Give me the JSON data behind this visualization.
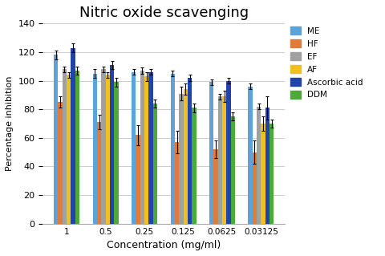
{
  "title": "Nitric oxide scavenging",
  "xlabel": "Concentration (mg/ml)",
  "ylabel": "Percentage inhibition",
  "categories": [
    "1",
    "0.5",
    "0.25",
    "0.125",
    "0.0625",
    "0.03125"
  ],
  "series": {
    "ME": [
      118,
      105,
      106,
      105,
      99,
      96
    ],
    "HF": [
      85,
      71,
      62,
      57,
      52,
      50
    ],
    "EF": [
      108,
      108,
      107,
      91,
      89,
      82
    ],
    "AF": [
      104,
      104,
      103,
      94,
      89,
      70
    ],
    "Ascorbic acid": [
      123,
      111,
      106,
      102,
      100,
      81
    ],
    "DDM": [
      107,
      99,
      84,
      81,
      75,
      70
    ]
  },
  "errors": {
    "ME": [
      3,
      3,
      2,
      2,
      2,
      2
    ],
    "HF": [
      4,
      5,
      7,
      8,
      6,
      8
    ],
    "EF": [
      2,
      2,
      2,
      5,
      2,
      2
    ],
    "AF": [
      2,
      2,
      3,
      4,
      4,
      5
    ],
    "Ascorbic acid": [
      3,
      3,
      2,
      2,
      2,
      8
    ],
    "DDM": [
      3,
      3,
      3,
      3,
      3,
      3
    ]
  },
  "colors": {
    "ME": "#5ba3d9",
    "HF": "#e07b39",
    "EF": "#a0a0a0",
    "AF": "#f0c020",
    "Ascorbic acid": "#2244aa",
    "DDM": "#4ea83a"
  },
  "ylim": [
    0,
    140
  ],
  "yticks": [
    0,
    20,
    40,
    60,
    80,
    100,
    120,
    140
  ],
  "background_color": "#ffffff",
  "title_fontsize": 13,
  "bar_width": 0.11
}
